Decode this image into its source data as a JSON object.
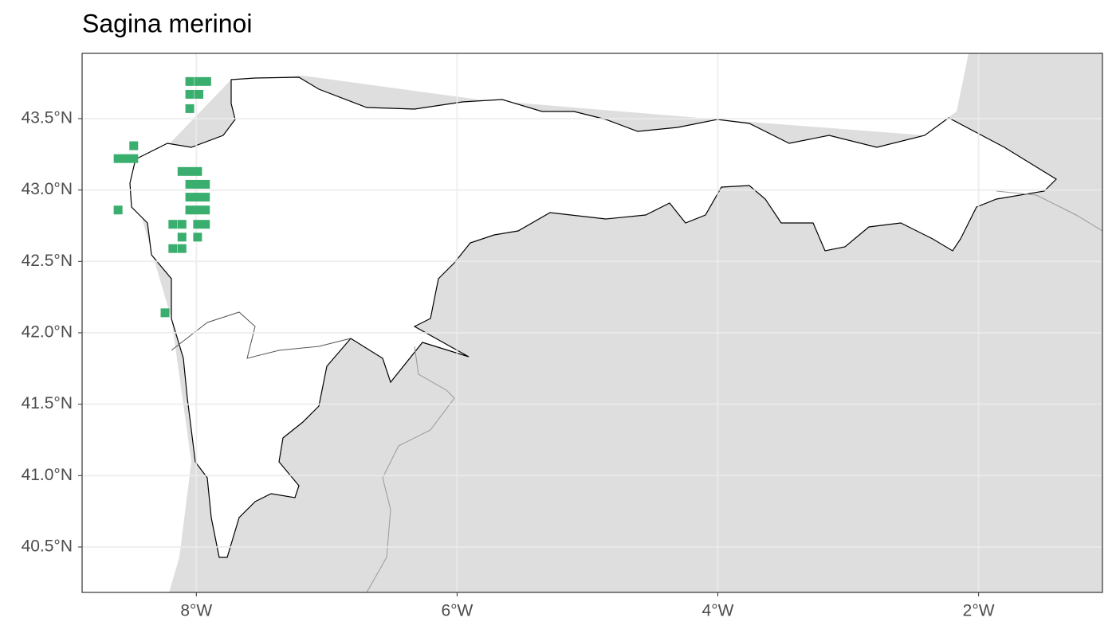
{
  "chart_data": {
    "type": "scatter",
    "title": "Sagina merinoi",
    "x": [
      -8.05,
      -7.98,
      -7.92,
      -8.05,
      -7.98,
      -8.05,
      -8.6,
      -8.54,
      -8.48,
      -8.48,
      -8.6,
      -8.11,
      -8.05,
      -7.99,
      -8.05,
      -7.99,
      -7.93,
      -8.05,
      -7.99,
      -7.93,
      -8.05,
      -7.99,
      -7.93,
      -7.99,
      -7.93,
      -7.99,
      -8.18,
      -8.11,
      -8.11,
      -8.18,
      -8.11,
      -8.24
    ],
    "y": [
      43.76,
      43.76,
      43.76,
      43.67,
      43.67,
      43.57,
      43.22,
      43.22,
      43.31,
      43.22,
      42.86,
      43.13,
      43.13,
      43.13,
      43.04,
      43.04,
      43.04,
      42.95,
      42.95,
      42.95,
      42.86,
      42.86,
      42.86,
      42.76,
      42.76,
      42.67,
      42.76,
      42.76,
      42.67,
      42.59,
      42.59,
      42.14
    ],
    "color": "#3aae6f",
    "xlim": [
      -8.876,
      -1.05
    ],
    "ylim": [
      40.182,
      43.957
    ],
    "xticks": [
      {
        "value": -8,
        "label": "8°W"
      },
      {
        "value": -6,
        "label": "6°W"
      },
      {
        "value": -4,
        "label": "4°W"
      },
      {
        "value": -2,
        "label": "2°W"
      }
    ],
    "yticks": [
      {
        "value": 40.5,
        "label": "40.5°N"
      },
      {
        "value": 41.0,
        "label": "41.0°N"
      },
      {
        "value": 41.5,
        "label": "41.5°N"
      },
      {
        "value": 42.0,
        "label": "42.0°N"
      },
      {
        "value": 42.5,
        "label": "42.5°N"
      },
      {
        "value": 43.0,
        "label": "43.0°N"
      },
      {
        "value": 43.5,
        "label": "43.5°N"
      }
    ],
    "grid": true
  }
}
